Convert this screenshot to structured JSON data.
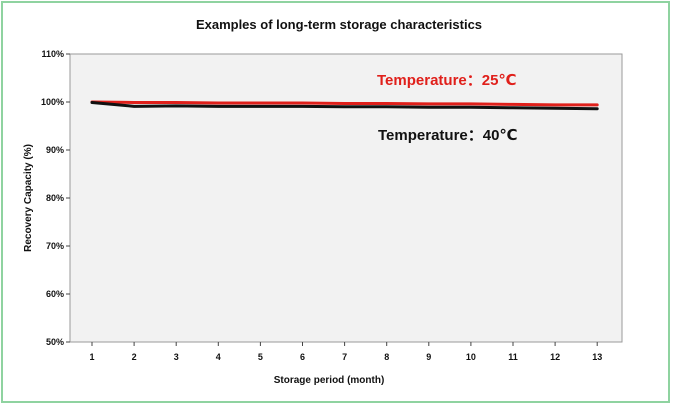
{
  "chart_data": {
    "type": "line",
    "title": "Examples of long-term storage characteristics",
    "xlabel": "Storage period (month)",
    "ylabel": "Recovery Capacity (%)",
    "x": [
      1,
      2,
      3,
      4,
      5,
      6,
      7,
      8,
      9,
      10,
      11,
      12,
      13
    ],
    "x_tick_labels": [
      "1",
      "2",
      "3",
      "4",
      "5",
      "6",
      "7",
      "8",
      "9",
      "10",
      "11",
      "12",
      "13"
    ],
    "ylim": [
      50,
      110
    ],
    "y_ticks": [
      50,
      60,
      70,
      80,
      90,
      100,
      110
    ],
    "y_tick_labels": [
      "50%",
      "60%",
      "70%",
      "80%",
      "90%",
      "100%",
      "110%"
    ],
    "grid": false,
    "plot_background": "#f2f2f2",
    "series": [
      {
        "name": "Temperature：25℃",
        "color": "#e0201b",
        "values": [
          100.0,
          99.9,
          99.9,
          99.8,
          99.8,
          99.8,
          99.7,
          99.7,
          99.6,
          99.6,
          99.5,
          99.4,
          99.4
        ]
      },
      {
        "name": "Temperature：40℃",
        "color": "#111111",
        "values": [
          99.9,
          99.1,
          99.2,
          99.1,
          99.1,
          99.1,
          99.0,
          99.0,
          98.9,
          98.9,
          98.8,
          98.7,
          98.6
        ]
      }
    ]
  }
}
